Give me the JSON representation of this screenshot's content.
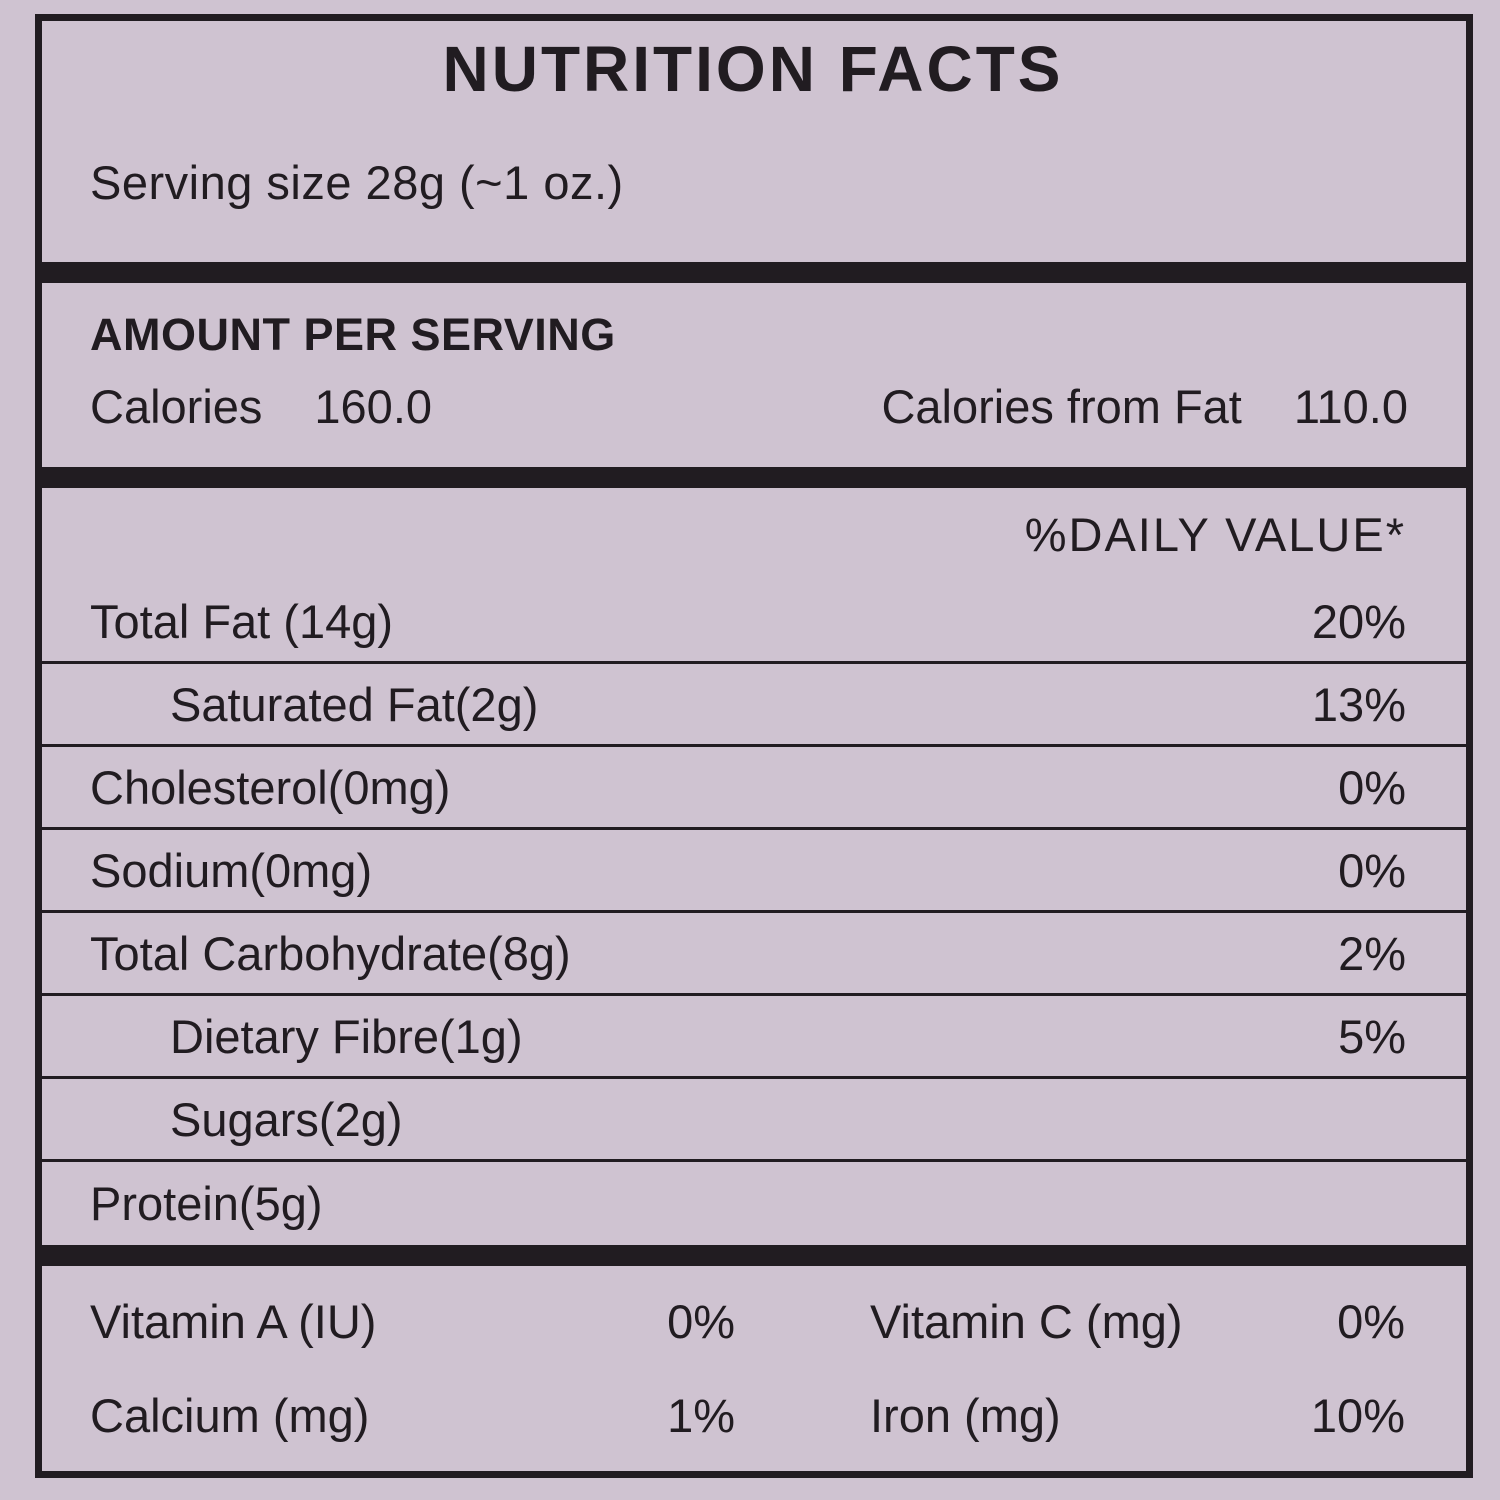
{
  "colors": {
    "background": "#cfc3d1",
    "ink": "#211c21"
  },
  "label": {
    "title": "NUTRITION FACTS",
    "serving_size": "Serving size 28g (~1 oz.)",
    "amount_per_serving": {
      "heading": "AMOUNT PER SERVING",
      "calories_label": "Calories",
      "calories_value": "160.0",
      "calories_from_fat_label": "Calories from Fat",
      "calories_from_fat_value": "110.0"
    },
    "daily_value_header": "%DAILY VALUE*",
    "nutrients": [
      {
        "name": "Total Fat (14g)",
        "daily_value": "20%"
      },
      {
        "name": "Saturated Fat(2g)",
        "daily_value": "13%"
      },
      {
        "name": "Cholesterol(0mg)",
        "daily_value": "0%"
      },
      {
        "name": "Sodium(0mg)",
        "daily_value": "0%"
      },
      {
        "name": "Total Carbohydrate(8g)",
        "daily_value": "2%"
      },
      {
        "name": "Dietary Fibre(1g)",
        "daily_value": "5%"
      },
      {
        "name": "Sugars(2g)",
        "daily_value": ""
      },
      {
        "name": "Protein(5g)",
        "daily_value": ""
      }
    ],
    "micronutrients": [
      {
        "name": "Vitamin A (IU)",
        "value": "0%"
      },
      {
        "name": "Vitamin C (mg)",
        "value": "0%"
      },
      {
        "name": "Calcium (mg)",
        "value": "1%"
      },
      {
        "name": "Iron (mg)",
        "value": "10%"
      }
    ]
  }
}
